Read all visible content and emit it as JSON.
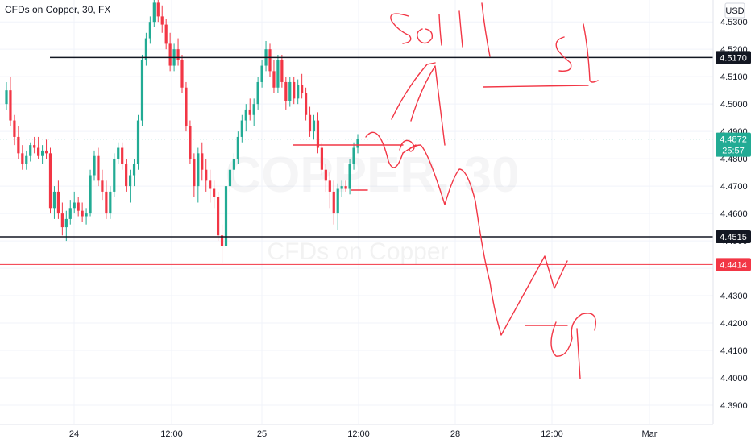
{
  "chart_data": {
    "type": "candlestick",
    "title": "CFDs on Copper, 30, FX",
    "currency": "USD",
    "watermark": {
      "main": "COPPER, 30",
      "sub": "CFDs on Copper"
    },
    "y_ticks": [
      "4.5300",
      "4.5200",
      "4.5100",
      "4.5000",
      "4.4900",
      "4.4800",
      "4.4700",
      "4.4600",
      "4.4500",
      "4.4400",
      "4.4300",
      "4.4200",
      "4.4100",
      "4.4000",
      "4.3900"
    ],
    "ylim": [
      4.385,
      4.538
    ],
    "x_ticks": [
      "24",
      "12:00",
      "25",
      "12:00",
      "28",
      "12:00",
      "Mar"
    ],
    "horizontal_lines": [
      {
        "label": "4.5170",
        "value": 4.517,
        "color": "#131722"
      },
      {
        "label": "4.4515",
        "value": 4.4515,
        "color": "#131722"
      },
      {
        "label": "4.4414",
        "value": 4.4414,
        "color": "#f23645"
      }
    ],
    "current_price": {
      "label": "4.4872",
      "countdown": "25:57",
      "value": 4.4872,
      "color": "#22ab94"
    },
    "annotations": [
      "sell",
      "sl",
      "tp"
    ],
    "colors": {
      "up": "#22ab94",
      "down": "#f23645",
      "drawing": "#f23645",
      "grid": "#f0f3fa"
    },
    "candles": [
      [
        4.5,
        4.508,
        4.498,
        4.505
      ],
      [
        4.505,
        4.51,
        4.492,
        4.494
      ],
      [
        4.494,
        4.496,
        4.485,
        4.488
      ],
      [
        4.488,
        4.492,
        4.48,
        4.482
      ],
      [
        4.482,
        4.485,
        4.476,
        4.478
      ],
      [
        4.478,
        4.483,
        4.476,
        4.481
      ],
      [
        4.481,
        4.486,
        4.479,
        4.485
      ],
      [
        4.485,
        4.488,
        4.482,
        4.484
      ],
      [
        4.484,
        4.488,
        4.48,
        4.481
      ],
      [
        4.481,
        4.485,
        4.478,
        4.483
      ],
      [
        4.483,
        4.487,
        4.48,
        4.482
      ],
      [
        4.482,
        4.484,
        4.46,
        4.462
      ],
      [
        4.462,
        4.47,
        4.458,
        4.468
      ],
      [
        4.468,
        4.472,
        4.458,
        4.46
      ],
      [
        4.46,
        4.464,
        4.452,
        4.455
      ],
      [
        4.455,
        4.461,
        4.45,
        4.458
      ],
      [
        4.458,
        4.465,
        4.456,
        4.462
      ],
      [
        4.462,
        4.468,
        4.46,
        4.464
      ],
      [
        4.464,
        4.466,
        4.459,
        4.461
      ],
      [
        4.461,
        4.464,
        4.457,
        4.459
      ],
      [
        4.459,
        4.462,
        4.456,
        4.46
      ],
      [
        4.46,
        4.476,
        4.459,
        4.474
      ],
      [
        4.474,
        4.483,
        4.472,
        4.481
      ],
      [
        4.481,
        4.484,
        4.47,
        4.472
      ],
      [
        4.472,
        4.476,
        4.465,
        4.468
      ],
      [
        4.468,
        4.472,
        4.458,
        4.46
      ],
      [
        4.46,
        4.47,
        4.458,
        4.468
      ],
      [
        4.468,
        4.482,
        4.466,
        4.48
      ],
      [
        4.48,
        4.486,
        4.478,
        4.484
      ],
      [
        4.484,
        4.486,
        4.476,
        4.478
      ],
      [
        4.478,
        4.48,
        4.468,
        4.47
      ],
      [
        4.47,
        4.476,
        4.464,
        4.474
      ],
      [
        4.474,
        4.48,
        4.47,
        4.478
      ],
      [
        4.478,
        4.496,
        4.476,
        4.494
      ],
      [
        4.494,
        4.518,
        4.492,
        4.516
      ],
      [
        4.516,
        4.526,
        4.514,
        4.524
      ],
      [
        4.524,
        4.532,
        4.522,
        4.53
      ],
      [
        4.53,
        4.54,
        4.528,
        4.537
      ],
      [
        4.537,
        4.538,
        4.53,
        4.532
      ],
      [
        4.532,
        4.536,
        4.526,
        4.529
      ],
      [
        4.529,
        4.531,
        4.52,
        4.522
      ],
      [
        4.522,
        4.526,
        4.512,
        4.514
      ],
      [
        4.514,
        4.522,
        4.512,
        4.52
      ],
      [
        4.52,
        4.524,
        4.514,
        4.516
      ],
      [
        4.516,
        4.518,
        4.504,
        4.506
      ],
      [
        4.506,
        4.508,
        4.49,
        4.492
      ],
      [
        4.492,
        4.494,
        4.478,
        4.48
      ],
      [
        4.48,
        4.482,
        4.466,
        4.47
      ],
      [
        4.47,
        4.484,
        4.464,
        4.482
      ],
      [
        4.482,
        4.486,
        4.472,
        4.476
      ],
      [
        4.476,
        4.48,
        4.468,
        4.472
      ],
      [
        4.472,
        4.476,
        4.464,
        4.469
      ],
      [
        4.469,
        4.472,
        4.462,
        4.466
      ],
      [
        4.466,
        4.468,
        4.45,
        4.452
      ],
      [
        4.452,
        4.456,
        4.442,
        4.448
      ],
      [
        4.448,
        4.472,
        4.446,
        4.47
      ],
      [
        4.47,
        4.478,
        4.468,
        4.476
      ],
      [
        4.476,
        4.482,
        4.472,
        4.48
      ],
      [
        4.48,
        4.49,
        4.478,
        4.488
      ],
      [
        4.488,
        4.496,
        4.486,
        4.494
      ],
      [
        4.494,
        4.5,
        4.49,
        4.498
      ],
      [
        4.498,
        4.502,
        4.494,
        4.496
      ],
      [
        4.496,
        4.502,
        4.492,
        4.5
      ],
      [
        4.5,
        4.51,
        4.498,
        4.508
      ],
      [
        4.508,
        4.516,
        4.506,
        4.514
      ],
      [
        4.514,
        4.523,
        4.512,
        4.52
      ],
      [
        4.52,
        4.522,
        4.51,
        4.512
      ],
      [
        4.512,
        4.516,
        4.504,
        4.506
      ],
      [
        4.506,
        4.518,
        4.504,
        4.516
      ],
      [
        4.516,
        4.518,
        4.506,
        4.508
      ],
      [
        4.508,
        4.51,
        4.498,
        4.501
      ],
      [
        4.501,
        4.51,
        4.499,
        4.508
      ],
      [
        4.508,
        4.51,
        4.5,
        4.502
      ],
      [
        4.502,
        4.509,
        4.5,
        4.507
      ],
      [
        4.507,
        4.511,
        4.502,
        4.504
      ],
      [
        4.504,
        4.506,
        4.494,
        4.496
      ],
      [
        4.496,
        4.499,
        4.488,
        4.49
      ],
      [
        4.49,
        4.496,
        4.487,
        4.494
      ],
      [
        4.494,
        4.497,
        4.482,
        4.484
      ],
      [
        4.484,
        4.486,
        4.474,
        4.476
      ],
      [
        4.476,
        4.478,
        4.468,
        4.472
      ],
      [
        4.472,
        4.475,
        4.462,
        4.468
      ],
      [
        4.468,
        4.472,
        4.456,
        4.46
      ],
      [
        4.46,
        4.471,
        4.454,
        4.469
      ],
      [
        4.469,
        4.472,
        4.466,
        4.47
      ],
      [
        4.47,
        4.472,
        4.468,
        4.469
      ],
      [
        4.469,
        4.48,
        4.467,
        4.478
      ],
      [
        4.478,
        4.486,
        4.476,
        4.484
      ],
      [
        4.484,
        4.489,
        4.482,
        4.4872
      ]
    ]
  }
}
